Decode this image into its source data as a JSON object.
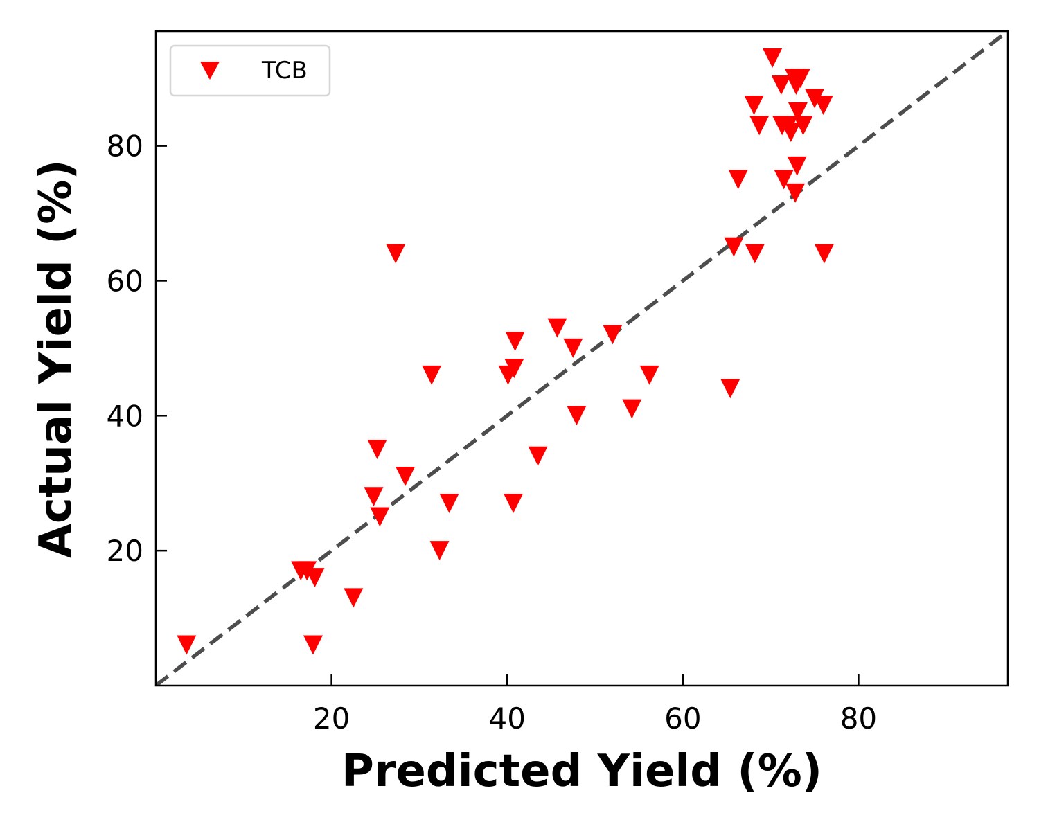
{
  "chart_data": {
    "type": "scatter",
    "xlabel": "Predicted Yield (%)",
    "ylabel": "Actual Yield (%)",
    "xlim": [
      0,
      97
    ],
    "ylim": [
      0,
      97
    ],
    "xticks": [
      20,
      40,
      60,
      80
    ],
    "yticks": [
      20,
      40,
      60,
      80
    ],
    "tick_labels_x": [
      "20",
      "40",
      "60",
      "80"
    ],
    "tick_labels_y": [
      "20",
      "40",
      "60",
      "80"
    ],
    "grid": false,
    "legend_position": "top-left",
    "reference_line": {
      "style": "dashed",
      "slope": 1,
      "intercept": 0,
      "color": "#4d4d4d"
    },
    "series": [
      {
        "name": "TCB",
        "marker": "triangle-down",
        "color": "#ff0000",
        "points": [
          [
            3.5,
            6
          ],
          [
            17.9,
            6
          ],
          [
            16.5,
            17
          ],
          [
            17.2,
            17
          ],
          [
            18.1,
            16
          ],
          [
            22.5,
            13
          ],
          [
            24.8,
            28
          ],
          [
            25.2,
            35
          ],
          [
            25.5,
            25
          ],
          [
            27.3,
            64
          ],
          [
            28.4,
            31
          ],
          [
            31.4,
            46
          ],
          [
            32.3,
            20
          ],
          [
            33.4,
            27
          ],
          [
            40.1,
            46
          ],
          [
            40.8,
            47
          ],
          [
            40.9,
            51
          ],
          [
            40.7,
            27
          ],
          [
            43.5,
            34
          ],
          [
            45.7,
            53
          ],
          [
            47.5,
            50
          ],
          [
            47.9,
            40
          ],
          [
            52.0,
            52
          ],
          [
            54.2,
            41
          ],
          [
            56.2,
            46
          ],
          [
            65.4,
            44
          ],
          [
            65.8,
            65
          ],
          [
            66.3,
            75
          ],
          [
            68.1,
            86
          ],
          [
            68.2,
            64
          ],
          [
            68.7,
            83
          ],
          [
            70.2,
            93
          ],
          [
            71.2,
            89
          ],
          [
            71.3,
            83
          ],
          [
            71.5,
            75
          ],
          [
            72.0,
            83
          ],
          [
            72.3,
            82
          ],
          [
            72.7,
            90
          ],
          [
            72.9,
            89
          ],
          [
            73.1,
            85
          ],
          [
            73.0,
            77
          ],
          [
            72.8,
            73
          ],
          [
            73.4,
            90
          ],
          [
            73.7,
            83
          ],
          [
            75.0,
            87
          ],
          [
            76.0,
            86
          ],
          [
            76.1,
            64
          ]
        ]
      }
    ]
  }
}
